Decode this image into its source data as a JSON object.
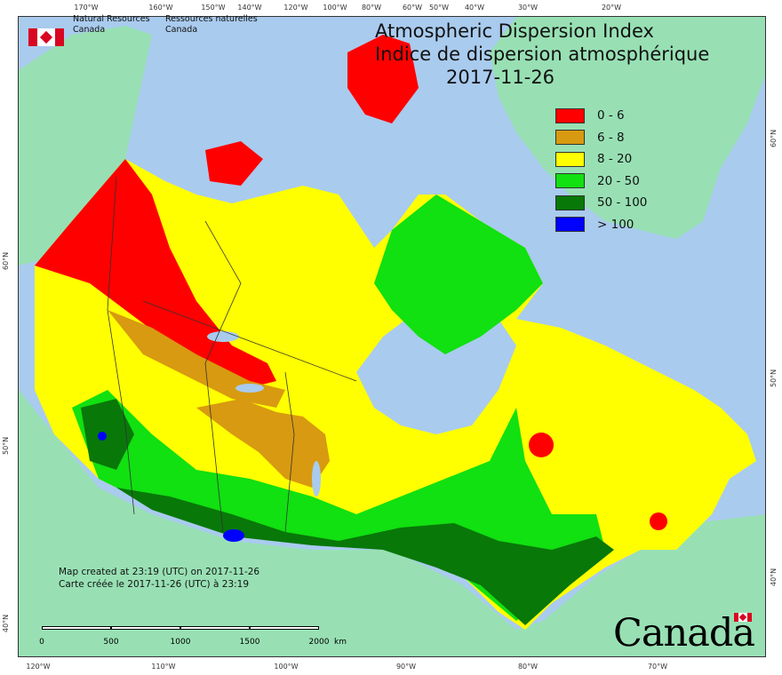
{
  "agency": {
    "en": [
      "Natural Resources",
      "Canada"
    ],
    "fr": [
      "Ressources naturelles",
      "Canada"
    ]
  },
  "title": {
    "en": "Atmospheric Dispersion Index",
    "fr": "Indice de dispersion atmosphérique",
    "date": "2017-11-26"
  },
  "legend": [
    {
      "label": "0 - 6",
      "color": "#ff0000"
    },
    {
      "label": "6 - 8",
      "color": "#d89a10"
    },
    {
      "label": "8 - 20",
      "color": "#ffff00"
    },
    {
      "label": "20 - 50",
      "color": "#11e011"
    },
    {
      "label": "50 - 100",
      "color": "#087808"
    },
    {
      "label": "> 100",
      "color": "#0000ff"
    }
  ],
  "credit": {
    "en": "Map created at 23:19 (UTC) on 2017-11-26",
    "fr": "Carte créée le 2017-11-26 (UTC) à 23:19"
  },
  "scale": {
    "labels": [
      "0",
      "500",
      "1000",
      "1500",
      "2000"
    ],
    "unit": "km"
  },
  "wordmark": "Canada",
  "colors": {
    "water": "#a9cbee",
    "foreign_land": "#98e0b4",
    "border": "#333333",
    "flag_red": "#d80621"
  },
  "ticks": {
    "top": [
      "170°W",
      "160°W",
      "150°W",
      "140°W",
      "120°W",
      "100°W",
      "80°W",
      "60°W",
      "50°W",
      "40°W",
      "30°W",
      "20°W"
    ],
    "bottom": [
      "120°W",
      "110°W",
      "100°W",
      "90°W",
      "80°W",
      "70°W"
    ],
    "left": [
      "60°N",
      "50°N",
      "40°N"
    ],
    "right": [
      "60°N",
      "50°N",
      "40°N"
    ]
  }
}
